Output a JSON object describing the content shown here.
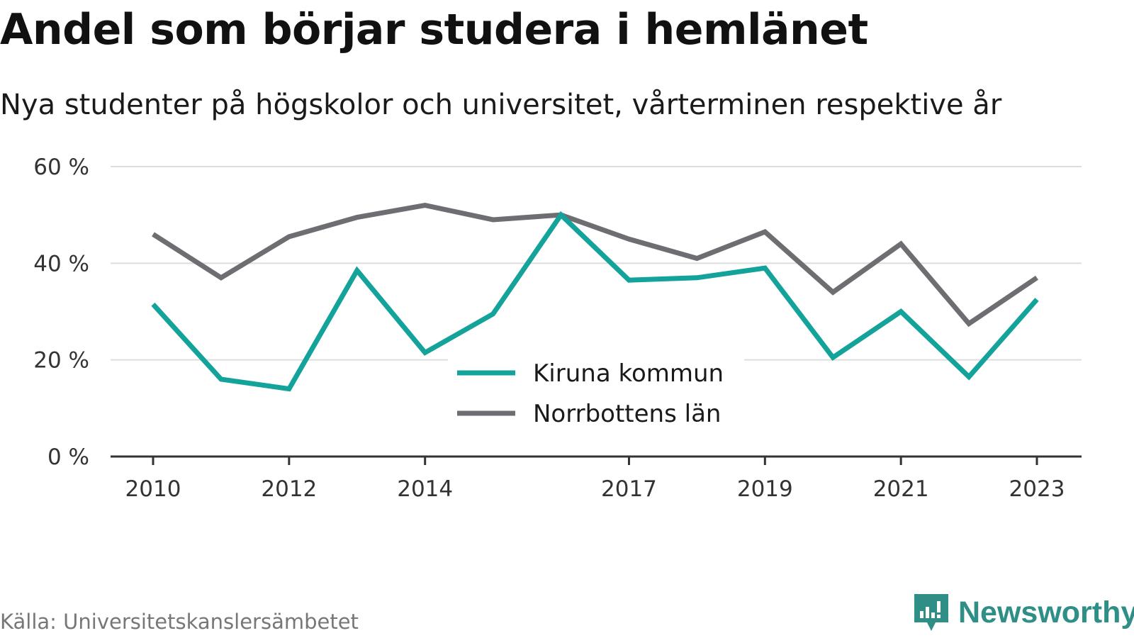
{
  "title": "Andel som börjar studera i hemlänet",
  "subtitle": "Nya studenter på högskolor och universitet, vårterminen respektive år",
  "source": "Källa: Universitetskanslersämbetet",
  "brand": "Newsworthy",
  "colors": {
    "kiruna": "#13a39a",
    "norrbotten": "#6e6d72",
    "grid": "#dddddd",
    "axis": "#333333",
    "brand": "#2f8f87"
  },
  "chart_data": {
    "type": "line",
    "x": [
      2010,
      2011,
      2012,
      2013,
      2014,
      2015,
      2016,
      2017,
      2018,
      2019,
      2020,
      2021,
      2022,
      2023
    ],
    "x_tick_labels": [
      "2010",
      "2012",
      "2014",
      "2017",
      "2019",
      "2021",
      "2023"
    ],
    "y_tick_labels": [
      "0 %",
      "20 %",
      "40 %",
      "60 %"
    ],
    "y_ticks": [
      0,
      20,
      40,
      60
    ],
    "ylim": [
      0,
      60
    ],
    "grid": true,
    "legend_position": "center-bottom",
    "series": [
      {
        "name": "Kiruna kommun",
        "color": "#13a39a",
        "values": [
          31.5,
          16,
          14,
          38.5,
          21.5,
          29.5,
          50,
          36.5,
          37,
          39,
          20.5,
          30,
          16.5,
          32.5
        ]
      },
      {
        "name": "Norrbottens län",
        "color": "#6e6d72",
        "values": [
          46,
          37,
          45.5,
          49.5,
          52,
          49,
          50,
          45,
          41,
          46.5,
          34,
          44,
          27.5,
          37
        ]
      }
    ]
  }
}
